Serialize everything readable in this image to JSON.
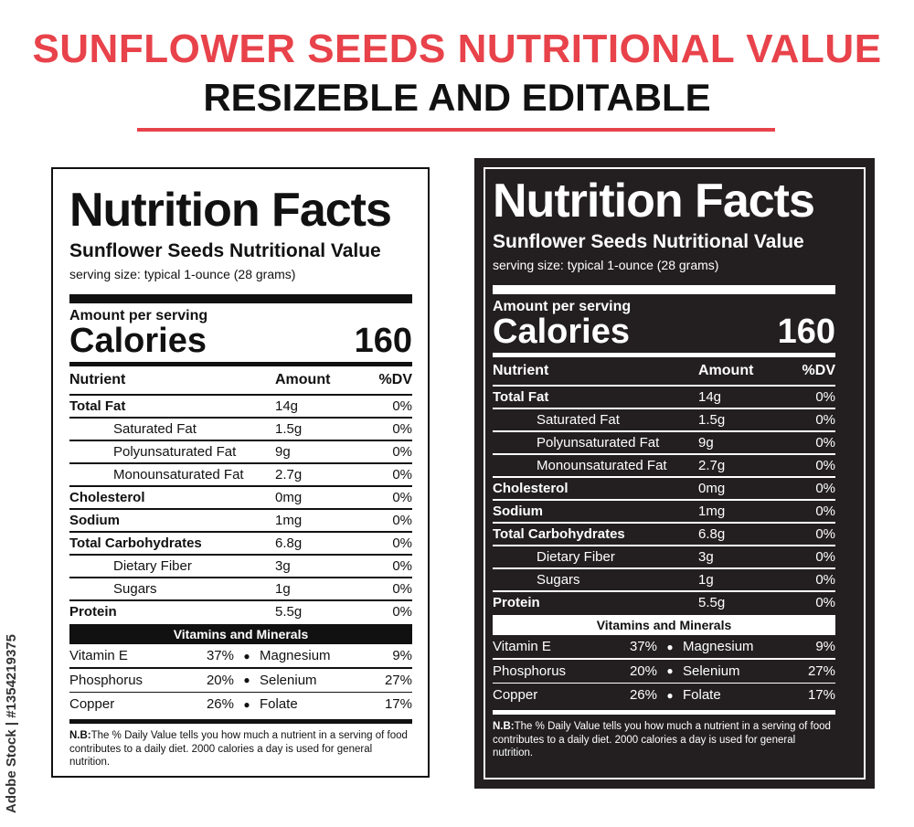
{
  "header": {
    "title": "SUNFLOWER SEEDS NUTRITIONAL VALUE",
    "subtitle": "RESIZEBLE AND EDITABLE"
  },
  "watermark": "Adobe Stock | #1354219375",
  "label": {
    "heading": "Nutrition Facts",
    "product": "Sunflower Seeds Nutritional Value",
    "serving": "serving size: typical 1-ounce (28 grams)",
    "amount_per_serving": "Amount per serving",
    "calories_label": "Calories",
    "calories_value": "160",
    "col_nutrient": "Nutrient",
    "col_amount": "Amount",
    "col_dv": "%DV",
    "nutrients": [
      {
        "name": "Total Fat",
        "amount": "14g",
        "dv": "0%"
      },
      {
        "name": "Saturated Fat",
        "amount": "1.5g",
        "dv": "0%"
      },
      {
        "name": "Polyunsaturated Fat",
        "amount": "9g",
        "dv": "0%"
      },
      {
        "name": "Monounsaturated Fat",
        "amount": "2.7g",
        "dv": "0%"
      },
      {
        "name": "Cholesterol",
        "amount": "0mg",
        "dv": "0%"
      },
      {
        "name": "Sodium",
        "amount": "1mg",
        "dv": "0%"
      },
      {
        "name": "Total Carbohydrates",
        "amount": "6.8g",
        "dv": "0%"
      },
      {
        "name": "Dietary Fiber",
        "amount": "3g",
        "dv": "0%"
      },
      {
        "name": "Sugars",
        "amount": "1g",
        "dv": "0%"
      },
      {
        "name": "Protein",
        "amount": "5.5g",
        "dv": "0%"
      }
    ],
    "vitamins_heading": "Vitamins and Minerals",
    "vitamins": [
      {
        "name": "Vitamin E",
        "pct": "37%",
        "name2": "Magnesium",
        "pct2": "9%"
      },
      {
        "name": "Phosphorus",
        "pct": "20%",
        "name2": "Selenium",
        "pct2": "27%"
      },
      {
        "name": "Copper",
        "pct": "26%",
        "name2": "Folate",
        "pct2": "17%"
      }
    ],
    "note_bold": "N.B:",
    "note_text": "The % Daily Value tells you how much a nutrient in a serving of food contributes to a daily diet. 2000 calories a day is used for general nutrition.",
    "bullet": "●"
  },
  "colors": {
    "accent": "#e8424a",
    "dark_bg": "#231f20",
    "ink": "#111111"
  }
}
